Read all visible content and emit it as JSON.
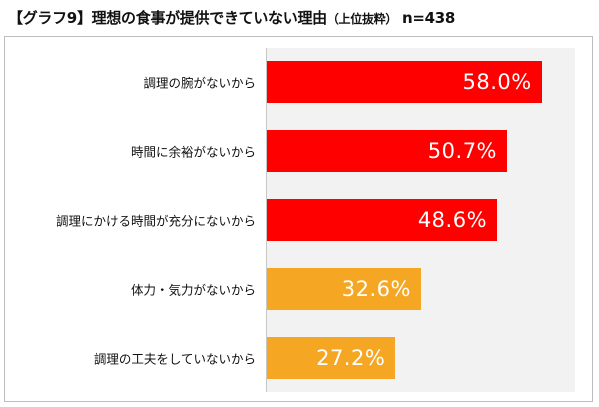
{
  "header": {
    "bracket_open": "【",
    "graph_label": "グラフ9",
    "bracket_close": "】",
    "title_main": "理想の食事が提供できていない理由",
    "title_sub": "（上位抜粋）",
    "sample": "n=438"
  },
  "colors": {
    "high": "#ff0000",
    "low": "#f5a623",
    "plot_background": "#f2f2f2"
  },
  "chart_data": {
    "type": "bar",
    "orientation": "horizontal",
    "categories": [
      "調理の腕がないから",
      "時間に余裕がないから",
      "調理にかける時間が充分にないから",
      "体力・気力がないから",
      "調理の工夫をしていないから"
    ],
    "values": [
      58.0,
      50.7,
      48.6,
      32.6,
      27.2
    ],
    "value_labels": [
      "58.0%",
      "50.7%",
      "48.6%",
      "32.6%",
      "27.2%"
    ],
    "bar_colors": [
      "#ff0000",
      "#ff0000",
      "#ff0000",
      "#f5a623",
      "#f5a623"
    ],
    "xlim": [
      0,
      65
    ],
    "grid": false,
    "legend": "none"
  }
}
